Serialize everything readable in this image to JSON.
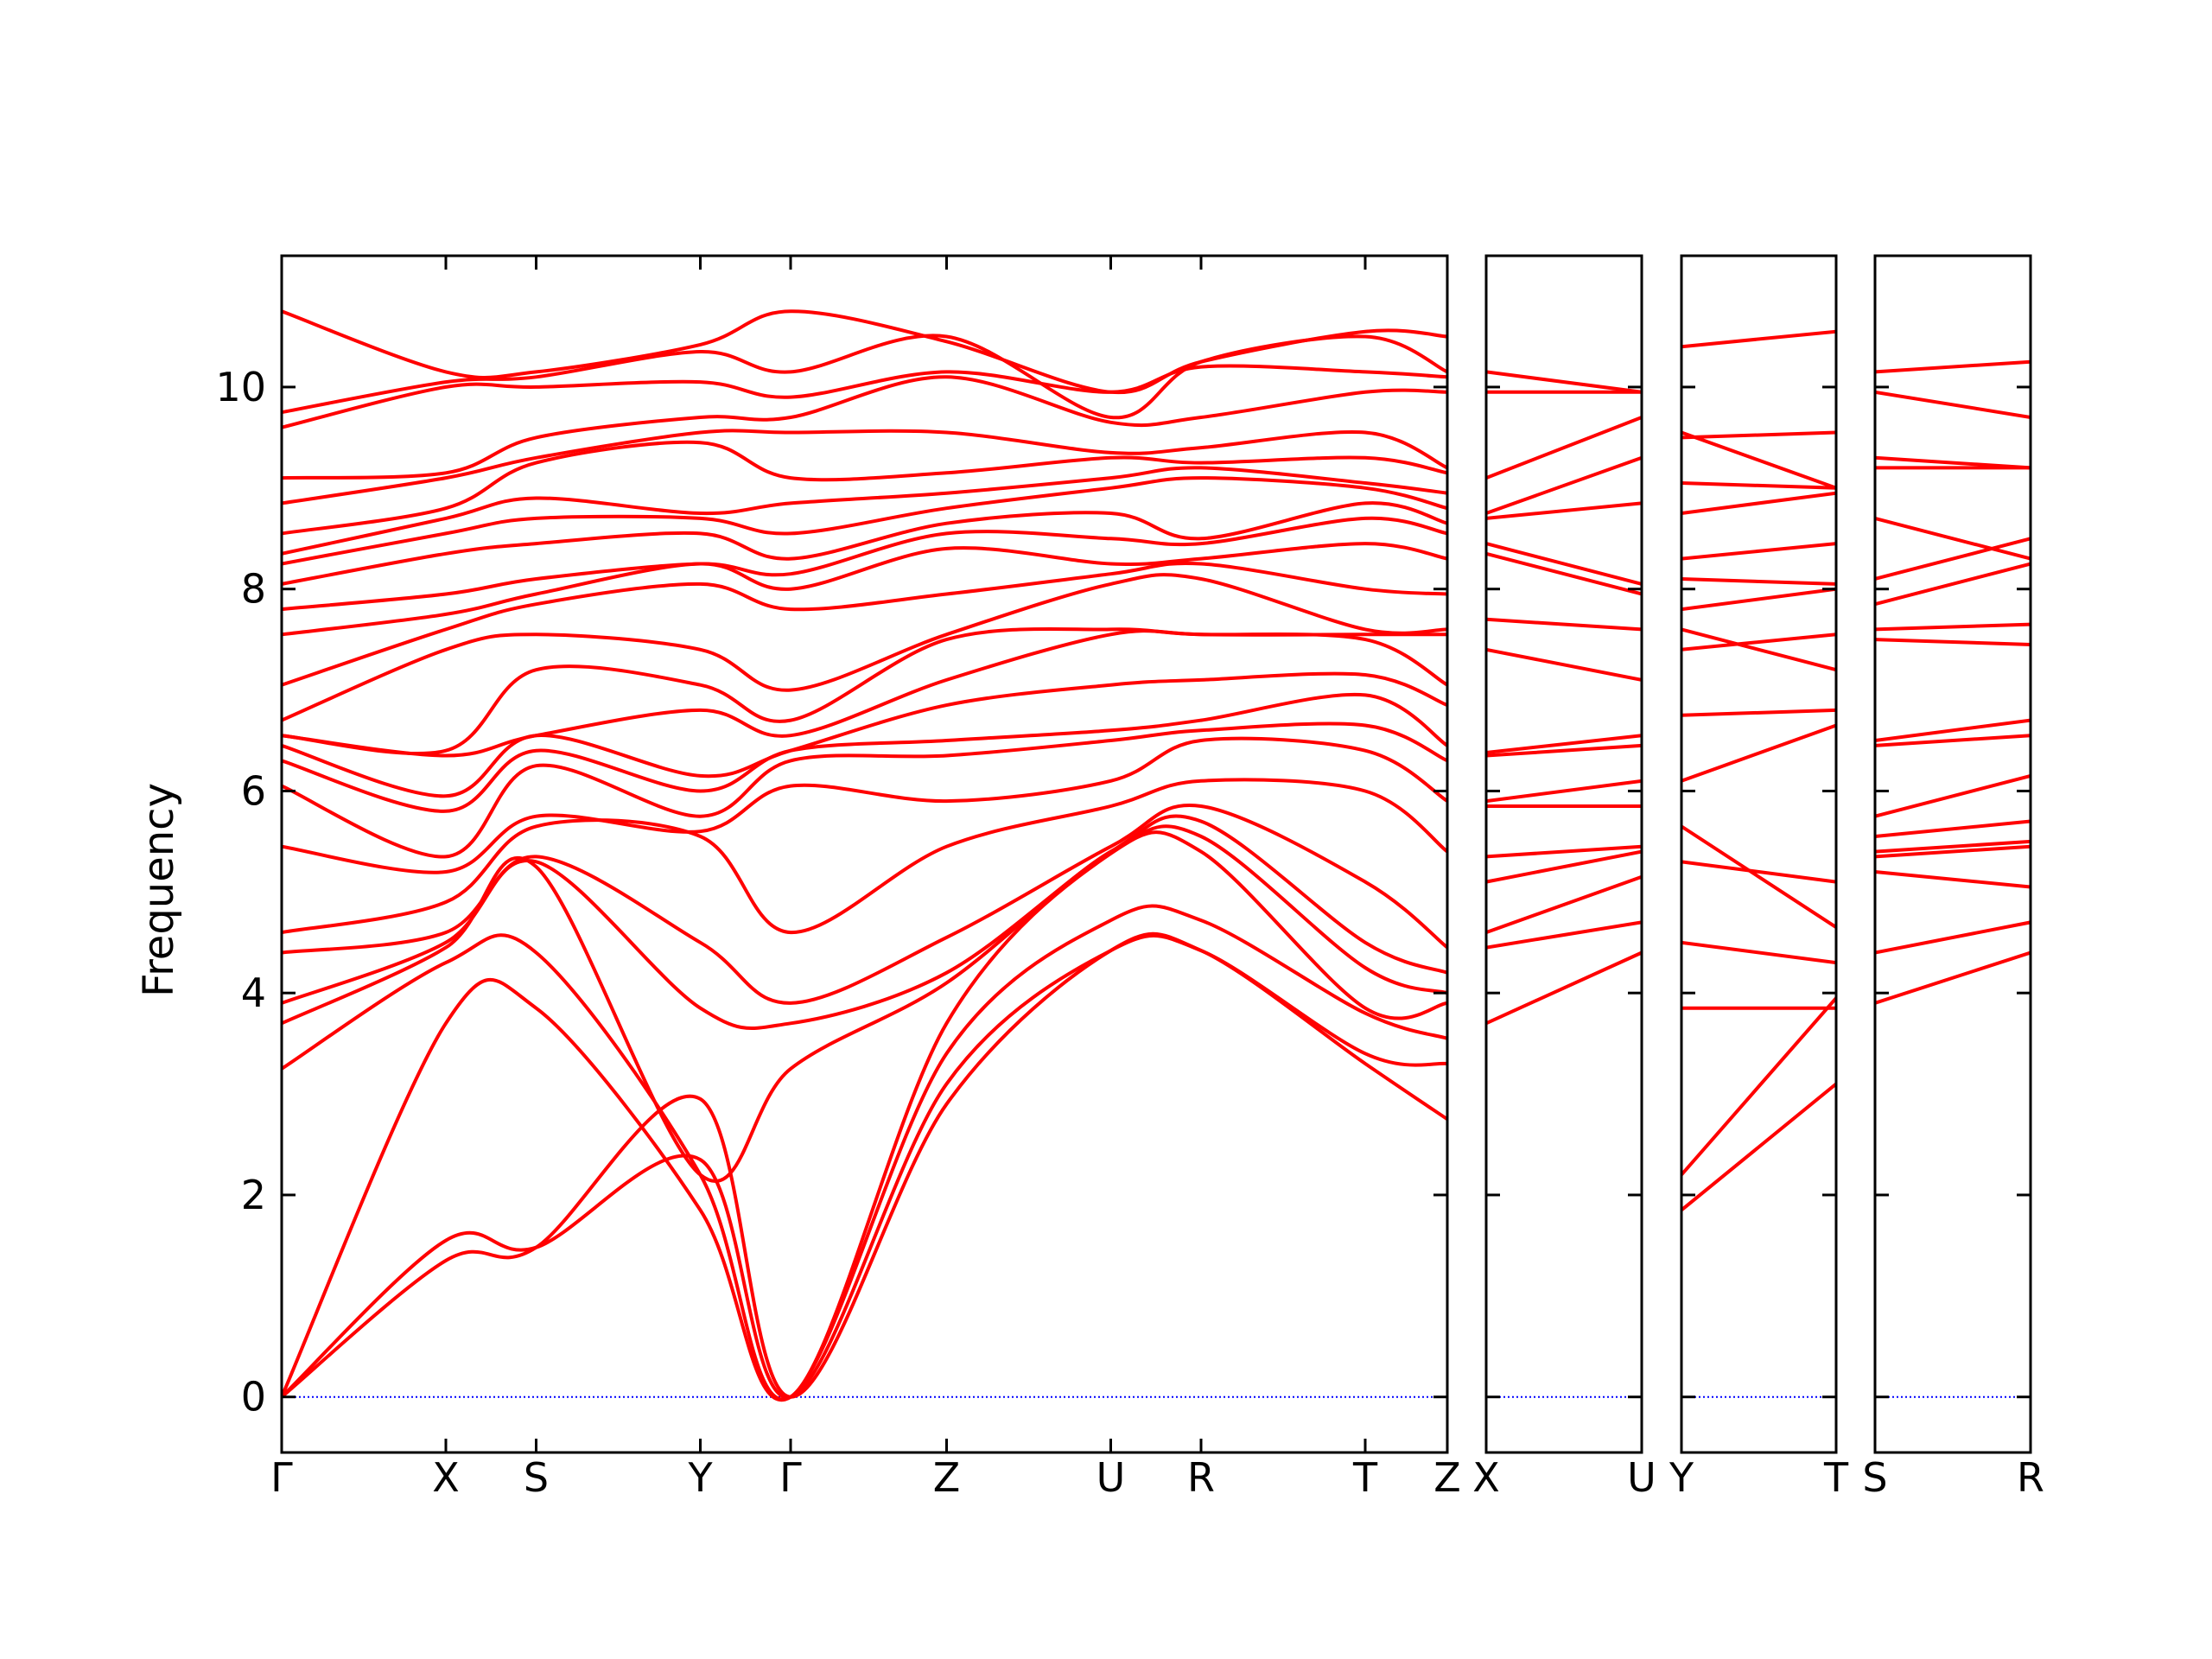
{
  "chart_data": {
    "type": "line",
    "title": "",
    "xlabel": "",
    "ylabel": "Frequency",
    "ylim": [
      -0.55,
      11.3
    ],
    "yticks": [
      0,
      2,
      4,
      6,
      8,
      10
    ],
    "grid": false,
    "legend": "none",
    "colors": {
      "bands": "#ff0000",
      "zero_line": "#0000ff",
      "axes": "#000000"
    },
    "segments": [
      {
        "labels": [
          "Γ",
          "X",
          "S",
          "Y",
          "Γ",
          "Z",
          "U",
          "R",
          "T",
          "Z"
        ],
        "x": [
          0,
          1,
          1.55,
          2.55,
          3.1,
          4.05,
          5.05,
          5.6,
          6.6,
          7.1
        ]
      },
      {
        "labels": [
          "X",
          "U"
        ],
        "x": [
          0,
          1
        ]
      },
      {
        "labels": [
          "Y",
          "T"
        ],
        "x": [
          0,
          1
        ]
      },
      {
        "labels": [
          "S",
          "R"
        ],
        "x": [
          0,
          1
        ]
      }
    ],
    "panel1_bands": [
      [
        0,
        1.35,
        1.48,
        2.95,
        0.0,
        2.9,
        4.42,
        4.42,
        3.3,
        2.75
      ],
      [
        0,
        1.55,
        1.48,
        2.35,
        0.0,
        3.1,
        4.42,
        4.42,
        3.4,
        3.3
      ],
      [
        0,
        3.7,
        3.85,
        1.85,
        0.0,
        3.4,
        4.72,
        4.72,
        3.8,
        3.55
      ],
      [
        3.25,
        4.3,
        4.4,
        2.2,
        0.0,
        3.7,
        5.38,
        5.4,
        3.85,
        3.9
      ],
      [
        3.7,
        4.45,
        5.25,
        2.2,
        3.25,
        4.1,
        5.4,
        5.55,
        4.25,
        4.0
      ],
      [
        3.9,
        4.5,
        5.3,
        3.85,
        3.7,
        4.2,
        5.4,
        5.7,
        4.5,
        4.2
      ],
      [
        4.4,
        4.6,
        5.35,
        4.5,
        3.9,
        4.55,
        5.45,
        5.85,
        5.1,
        4.45
      ],
      [
        4.6,
        4.9,
        5.65,
        5.55,
        4.6,
        5.45,
        5.85,
        6.1,
        6.0,
        5.4
      ],
      [
        5.45,
        5.2,
        5.75,
        5.6,
        6.05,
        5.9,
        6.1,
        6.5,
        6.4,
        5.9
      ],
      [
        6.05,
        5.35,
        6.25,
        5.75,
        6.3,
        6.35,
        6.5,
        6.6,
        6.65,
        6.3
      ],
      [
        6.3,
        5.8,
        6.4,
        6.0,
        6.4,
        6.5,
        6.6,
        6.7,
        6.95,
        6.45
      ],
      [
        6.45,
        5.95,
        6.55,
        6.15,
        6.4,
        6.85,
        7.05,
        7.1,
        7.15,
        6.85
      ],
      [
        6.55,
        6.35,
        6.55,
        6.8,
        6.55,
        7.1,
        7.55,
        7.55,
        7.5,
        7.05
      ],
      [
        6.55,
        6.4,
        7.2,
        7.05,
        6.7,
        7.5,
        7.6,
        7.55,
        7.55,
        7.55
      ],
      [
        6.7,
        7.4,
        7.55,
        7.4,
        7.0,
        7.55,
        8.05,
        8.1,
        7.6,
        7.6
      ],
      [
        7.05,
        7.6,
        7.85,
        8.05,
        7.8,
        7.95,
        8.15,
        8.25,
        8.0,
        7.95
      ],
      [
        7.55,
        7.75,
        7.95,
        8.25,
        8.0,
        8.4,
        8.25,
        8.3,
        8.45,
        8.3
      ],
      [
        7.8,
        7.95,
        8.1,
        8.25,
        8.15,
        8.55,
        8.5,
        8.45,
        8.7,
        8.55
      ],
      [
        8.05,
        8.35,
        8.45,
        8.55,
        8.3,
        8.65,
        8.75,
        8.5,
        8.85,
        8.65
      ],
      [
        8.25,
        8.55,
        8.7,
        8.7,
        8.55,
        8.8,
        9.0,
        9.1,
        9.0,
        8.8
      ],
      [
        8.35,
        8.7,
        8.9,
        8.75,
        8.85,
        8.95,
        9.1,
        9.2,
        9.05,
        8.95
      ],
      [
        8.55,
        8.8,
        9.25,
        9.45,
        9.1,
        9.15,
        9.3,
        9.25,
        9.3,
        9.15
      ],
      [
        8.85,
        9.1,
        9.3,
        9.55,
        9.55,
        9.55,
        9.35,
        9.4,
        9.55,
        9.2
      ],
      [
        9.1,
        9.15,
        9.5,
        9.7,
        9.7,
        10.1,
        9.65,
        9.7,
        9.95,
        9.95
      ],
      [
        9.6,
        10.0,
        10.0,
        10.05,
        9.9,
        10.15,
        9.95,
        10.2,
        10.15,
        10.1
      ],
      [
        9.75,
        10.05,
        10.1,
        10.35,
        10.15,
        10.5,
        9.7,
        10.25,
        10.5,
        10.15
      ],
      [
        10.75,
        10.15,
        10.15,
        10.42,
        10.75,
        10.45,
        9.95,
        10.25,
        10.55,
        10.5
      ]
    ],
    "panel2_bands": [
      [
        3.7,
        4.4
      ],
      [
        4.45,
        4.7
      ],
      [
        4.6,
        5.15
      ],
      [
        5.1,
        5.4
      ],
      [
        5.35,
        5.45
      ],
      [
        5.85,
        5.85
      ],
      [
        5.9,
        6.1
      ],
      [
        6.35,
        6.45
      ],
      [
        6.38,
        6.55
      ],
      [
        7.4,
        7.1
      ],
      [
        7.7,
        7.6
      ],
      [
        8.35,
        7.95
      ],
      [
        8.45,
        8.05
      ],
      [
        8.7,
        8.85
      ],
      [
        8.75,
        9.3
      ],
      [
        9.1,
        9.7
      ],
      [
        9.95,
        9.95
      ],
      [
        10.15,
        9.95
      ]
    ],
    "panel3_bands": [
      [
        1.85,
        3.1
      ],
      [
        2.2,
        3.95
      ],
      [
        3.85,
        3.85
      ],
      [
        4.5,
        4.3
      ],
      [
        5.3,
        5.1
      ],
      [
        5.65,
        4.65
      ],
      [
        6.1,
        6.65
      ],
      [
        6.75,
        6.8
      ],
      [
        7.4,
        7.55
      ],
      [
        7.6,
        7.2
      ],
      [
        7.8,
        8.0
      ],
      [
        8.1,
        8.05
      ],
      [
        8.3,
        8.45
      ],
      [
        8.75,
        8.95
      ],
      [
        9.05,
        9.0
      ],
      [
        9.5,
        9.55
      ],
      [
        9.55,
        9.0
      ],
      [
        10.4,
        10.55
      ]
    ],
    "panel4_bands": [
      [
        3.9,
        4.4
      ],
      [
        4.4,
        4.7
      ],
      [
        5.2,
        5.05
      ],
      [
        5.35,
        5.45
      ],
      [
        5.4,
        5.5
      ],
      [
        5.55,
        5.7
      ],
      [
        5.75,
        6.15
      ],
      [
        6.45,
        6.55
      ],
      [
        6.5,
        6.7
      ],
      [
        7.5,
        7.45
      ],
      [
        7.6,
        7.65
      ],
      [
        7.85,
        8.25
      ],
      [
        8.1,
        8.5
      ],
      [
        8.7,
        8.3
      ],
      [
        9.2,
        9.2
      ],
      [
        9.3,
        9.2
      ],
      [
        9.95,
        9.7
      ],
      [
        10.15,
        10.25
      ]
    ]
  }
}
